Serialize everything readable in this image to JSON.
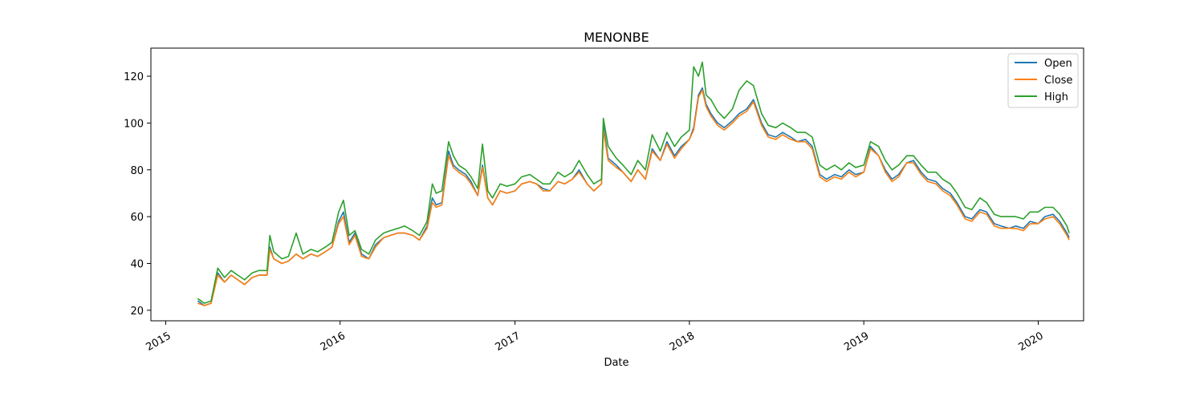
{
  "chart_data": {
    "type": "line",
    "title": "MENONBE",
    "xlabel": "Date",
    "ylabel": "",
    "x_axis_type": "date",
    "xlim": [
      "2014-12-01",
      "2020-04-05"
    ],
    "ylim": [
      15.5,
      132
    ],
    "y_ticks": [
      20,
      40,
      60,
      80,
      100,
      120
    ],
    "x_ticks": [
      {
        "date": "2015-01-01",
        "label": "2015"
      },
      {
        "date": "2016-01-01",
        "label": "2016"
      },
      {
        "date": "2017-01-01",
        "label": "2017"
      },
      {
        "date": "2018-01-01",
        "label": "2018"
      },
      {
        "date": "2019-01-01",
        "label": "2019"
      },
      {
        "date": "2020-01-01",
        "label": "2020"
      }
    ],
    "legend_position": "top-right",
    "grid": false,
    "dates": [
      "2015-03-09",
      "2015-03-23",
      "2015-04-06",
      "2015-04-20",
      "2015-05-04",
      "2015-05-18",
      "2015-06-01",
      "2015-06-15",
      "2015-07-01",
      "2015-07-15",
      "2015-08-01",
      "2015-08-07",
      "2015-08-15",
      "2015-09-01",
      "2015-09-15",
      "2015-10-01",
      "2015-10-15",
      "2015-11-01",
      "2015-11-15",
      "2015-12-01",
      "2015-12-15",
      "2015-12-29",
      "2016-01-08",
      "2016-01-20",
      "2016-02-01",
      "2016-02-15",
      "2016-03-01",
      "2016-03-15",
      "2016-04-01",
      "2016-04-15",
      "2016-05-01",
      "2016-05-15",
      "2016-06-01",
      "2016-06-15",
      "2016-07-01",
      "2016-07-12",
      "2016-07-20",
      "2016-08-01",
      "2016-08-15",
      "2016-08-25",
      "2016-09-05",
      "2016-09-20",
      "2016-10-01",
      "2016-10-15",
      "2016-10-25",
      "2016-11-05",
      "2016-11-15",
      "2016-12-01",
      "2016-12-15",
      "2017-01-01",
      "2017-01-15",
      "2017-02-01",
      "2017-02-15",
      "2017-03-01",
      "2017-03-15",
      "2017-04-01",
      "2017-04-15",
      "2017-05-01",
      "2017-05-15",
      "2017-06-01",
      "2017-06-15",
      "2017-07-01",
      "2017-07-05",
      "2017-07-15",
      "2017-08-01",
      "2017-08-15",
      "2017-09-01",
      "2017-09-15",
      "2017-10-01",
      "2017-10-15",
      "2017-11-01",
      "2017-11-15",
      "2017-12-01",
      "2017-12-15",
      "2018-01-01",
      "2018-01-10",
      "2018-01-20",
      "2018-01-28",
      "2018-02-05",
      "2018-02-15",
      "2018-03-01",
      "2018-03-15",
      "2018-04-01",
      "2018-04-15",
      "2018-05-01",
      "2018-05-15",
      "2018-06-01",
      "2018-06-15",
      "2018-07-01",
      "2018-07-15",
      "2018-08-01",
      "2018-08-15",
      "2018-09-01",
      "2018-09-15",
      "2018-10-01",
      "2018-10-15",
      "2018-11-01",
      "2018-11-15",
      "2018-12-01",
      "2018-12-15",
      "2019-01-01",
      "2019-01-15",
      "2019-02-01",
      "2019-02-15",
      "2019-03-01",
      "2019-03-15",
      "2019-04-01",
      "2019-04-15",
      "2019-05-01",
      "2019-05-15",
      "2019-06-01",
      "2019-06-15",
      "2019-07-01",
      "2019-07-15",
      "2019-08-01",
      "2019-08-15",
      "2019-09-01",
      "2019-09-15",
      "2019-10-01",
      "2019-10-15",
      "2019-11-01",
      "2019-11-15",
      "2019-12-01",
      "2019-12-15",
      "2020-01-01",
      "2020-01-15",
      "2020-02-01",
      "2020-02-15",
      "2020-03-01",
      "2020-03-06"
    ],
    "series": [
      {
        "name": "Open",
        "color": "#1f77b4",
        "values": [
          24,
          22,
          23,
          36,
          32,
          35,
          33,
          31,
          34,
          35,
          35,
          47,
          42,
          40,
          41,
          44,
          42,
          44,
          43,
          45,
          47,
          58,
          62,
          49,
          53,
          44,
          42,
          48,
          51,
          52,
          53,
          53,
          52,
          50,
          56,
          68,
          65,
          66,
          88,
          82,
          80,
          78,
          75,
          69,
          82,
          68,
          65,
          71,
          70,
          71,
          74,
          75,
          74,
          72,
          71,
          75,
          74,
          76,
          80,
          74,
          71,
          74,
          99,
          85,
          82,
          79,
          75,
          80,
          76,
          89,
          84,
          92,
          86,
          90,
          93,
          98,
          112,
          115,
          108,
          104,
          100,
          98,
          101,
          104,
          106,
          110,
          100,
          95,
          94,
          96,
          94,
          92,
          93,
          90,
          78,
          76,
          78,
          77,
          80,
          78,
          79,
          90,
          86,
          80,
          76,
          78,
          83,
          84,
          79,
          76,
          75,
          72,
          70,
          66,
          60,
          59,
          63,
          62,
          57,
          56,
          55,
          56,
          55,
          58,
          57,
          60,
          61,
          58,
          53,
          51
        ],
        "draw_offset_note": ""
      },
      {
        "name": "Close",
        "color": "#ff7f0e",
        "values": [
          23,
          22,
          23,
          35,
          32,
          35,
          33,
          31,
          34,
          35,
          35,
          46,
          42,
          40,
          41,
          44,
          42,
          44,
          43,
          45,
          47,
          57,
          60,
          48,
          52,
          43,
          42,
          47,
          51,
          52,
          53,
          53,
          52,
          50,
          55,
          66,
          64,
          65,
          86,
          81,
          79,
          77,
          74,
          69,
          81,
          68,
          65,
          71,
          70,
          71,
          74,
          75,
          74,
          71,
          71,
          75,
          74,
          76,
          79,
          74,
          71,
          74,
          97,
          84,
          81,
          79,
          75,
          80,
          76,
          88,
          84,
          91,
          85,
          89,
          93,
          97,
          111,
          114,
          107,
          103,
          99,
          97,
          100,
          103,
          105,
          109,
          99,
          94,
          93,
          95,
          93,
          92,
          92,
          89,
          77,
          75,
          77,
          76,
          79,
          77,
          79,
          89,
          86,
          79,
          75,
          77,
          83,
          83,
          78,
          75,
          74,
          71,
          69,
          65,
          59,
          58,
          62,
          61,
          56,
          55,
          55,
          55,
          54,
          57,
          57,
          59,
          60,
          57,
          52,
          50
        ]
      },
      {
        "name": "High",
        "color": "#2ca02c",
        "values": [
          25,
          23,
          24,
          38,
          34,
          37,
          35,
          33,
          36,
          37,
          37,
          52,
          45,
          42,
          43,
          53,
          44,
          46,
          45,
          47,
          49,
          62,
          67,
          52,
          54,
          46,
          44,
          50,
          53,
          54,
          55,
          56,
          54,
          52,
          58,
          74,
          70,
          71,
          92,
          86,
          82,
          80,
          77,
          72,
          91,
          71,
          68,
          74,
          73,
          74,
          77,
          78,
          76,
          74,
          74,
          79,
          77,
          79,
          84,
          78,
          74,
          76,
          102,
          90,
          85,
          82,
          78,
          84,
          80,
          95,
          88,
          96,
          90,
          94,
          97,
          124,
          120,
          126,
          112,
          110,
          105,
          102,
          106,
          114,
          118,
          116,
          104,
          99,
          98,
          100,
          98,
          96,
          96,
          94,
          82,
          80,
          82,
          80,
          83,
          81,
          82,
          92,
          90,
          84,
          80,
          82,
          86,
          86,
          82,
          79,
          79,
          76,
          74,
          70,
          64,
          63,
          68,
          66,
          61,
          60,
          60,
          60,
          59,
          62,
          62,
          64,
          64,
          61,
          56,
          53
        ]
      }
    ]
  }
}
